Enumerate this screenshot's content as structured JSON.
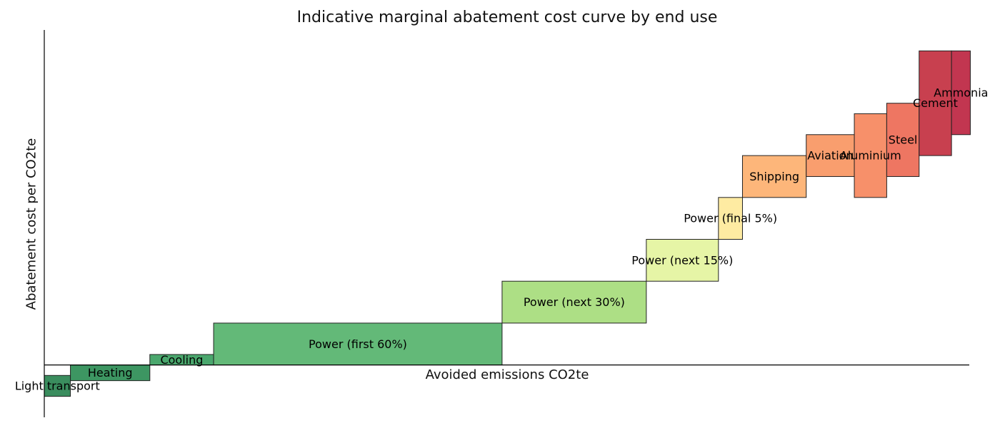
{
  "chart_data": {
    "type": "bar",
    "variant": "marginal-abatement-cost-curve",
    "title": "Indicative marginal abatement cost curve by end use",
    "xlabel": "Avoided emissions CO2te",
    "ylabel": "Abatement cost per CO2te",
    "xlim": [
      0,
      88.5
    ],
    "ylim": [
      -5,
      32
    ],
    "grid": false,
    "legend": "none",
    "bars": [
      {
        "label": "Light transport",
        "x_start": 0.0,
        "width": 2.5,
        "y_low": -3.0,
        "y_high": -1.0,
        "color": "#3a8d5e"
      },
      {
        "label": "Heating",
        "x_start": 2.5,
        "width": 7.6,
        "y_low": -1.5,
        "y_high": 0.0,
        "color": "#3d9662"
      },
      {
        "label": "Cooling",
        "x_start": 10.1,
        "width": 6.1,
        "y_low": 0.0,
        "y_high": 1.0,
        "color": "#4aa76d"
      },
      {
        "label": "Power (first 60%)",
        "x_start": 16.2,
        "width": 27.6,
        "y_low": 0.0,
        "y_high": 4.0,
        "color": "#63b978"
      },
      {
        "label": "Power (next 30%)",
        "x_start": 43.8,
        "width": 13.8,
        "y_low": 4.0,
        "y_high": 8.0,
        "color": "#addf85"
      },
      {
        "label": "Power (next 15%)",
        "x_start": 57.6,
        "width": 6.9,
        "y_low": 8.0,
        "y_high": 12.0,
        "color": "#e6f5a6"
      },
      {
        "label": "Power (final 5%)",
        "x_start": 64.5,
        "width": 2.3,
        "y_low": 12.0,
        "y_high": 16.0,
        "color": "#feeba2"
      },
      {
        "label": "Shipping",
        "x_start": 66.8,
        "width": 6.1,
        "y_low": 16.0,
        "y_high": 20.0,
        "color": "#fdb67a"
      },
      {
        "label": "Aviation",
        "x_start": 72.9,
        "width": 4.6,
        "y_low": 18.0,
        "y_high": 22.0,
        "color": "#f99e6e"
      },
      {
        "label": "Aluminium",
        "x_start": 77.5,
        "width": 3.1,
        "y_low": 16.0,
        "y_high": 24.0,
        "color": "#f7906a"
      },
      {
        "label": "Steel",
        "x_start": 80.6,
        "width": 3.1,
        "y_low": 18.0,
        "y_high": 25.0,
        "color": "#ee7662"
      },
      {
        "label": "Cement",
        "x_start": 83.7,
        "width": 3.1,
        "y_low": 20.0,
        "y_high": 30.0,
        "color": "#c8404f"
      },
      {
        "label": "Ammonia",
        "x_start": 86.8,
        "width": 1.8,
        "y_low": 22.0,
        "y_high": 30.0,
        "color": "#c23650"
      }
    ]
  }
}
